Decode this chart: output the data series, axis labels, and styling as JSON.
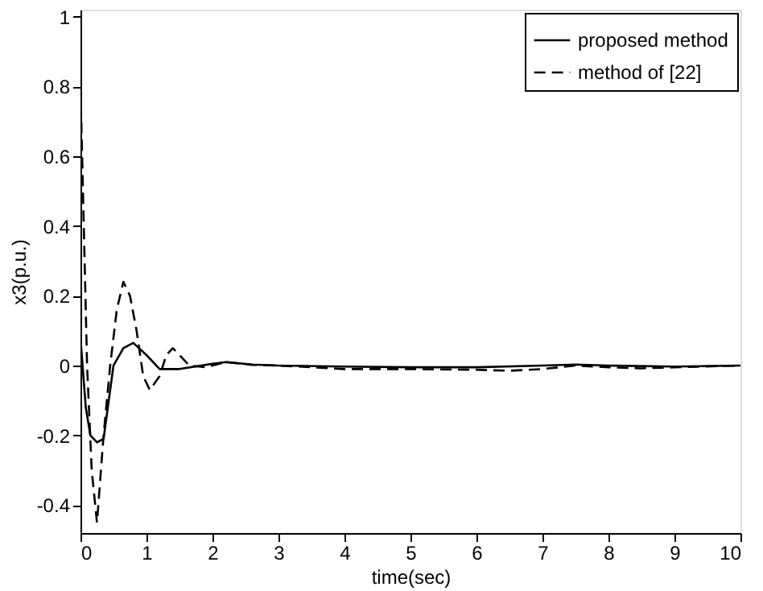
{
  "chart_data": {
    "type": "line",
    "xlabel": "time(sec)",
    "ylabel": "x3(p.u.)",
    "xlim": [
      0,
      10
    ],
    "xticks": [
      0,
      1,
      2,
      3,
      4,
      5,
      6,
      7,
      8,
      9,
      10
    ],
    "ylim": [
      -0.48,
      1.02
    ],
    "yticks": [
      -0.4,
      -0.2,
      0,
      0.2,
      0.4,
      0.6,
      0.8,
      1
    ],
    "grid": false,
    "legend": "top right",
    "marker": "none",
    "series": [
      {
        "name": "proposed method",
        "color": "#000000",
        "line_style": "solid",
        "x": [
          0,
          0.08,
          0.15,
          0.25,
          0.35,
          0.5,
          0.65,
          0.8,
          1.0,
          1.2,
          1.5,
          2.0,
          2.2,
          2.6,
          3,
          4,
          5,
          6,
          7,
          7.5,
          8,
          9,
          10
        ],
        "values": [
          0.08,
          -0.12,
          -0.2,
          -0.22,
          -0.21,
          0,
          0.05,
          0.065,
          0.03,
          -0.01,
          -0.01,
          0.005,
          0.01,
          0.003,
          0,
          -0.003,
          -0.005,
          -0.005,
          0,
          0.003,
          0,
          -0.003,
          0
        ]
      },
      {
        "name": "method of [22]",
        "color": "#000000",
        "line_style": "dashed",
        "x": [
          0,
          0.05,
          0.1,
          0.17,
          0.25,
          0.35,
          0.45,
          0.55,
          0.65,
          0.75,
          0.85,
          0.95,
          1.05,
          1.2,
          1.3,
          1.4,
          1.5,
          1.65,
          1.9,
          2.2,
          2.6,
          3,
          4,
          5,
          6,
          6.5,
          7,
          7.5,
          8,
          8.5,
          9,
          10
        ],
        "values": [
          0.8,
          0.4,
          0,
          -0.3,
          -0.45,
          -0.2,
          0,
          0.16,
          0.24,
          0.2,
          0.1,
          -0.03,
          -0.07,
          -0.03,
          0.03,
          0.05,
          0.03,
          0,
          -0.005,
          0.01,
          0.002,
          0,
          -0.01,
          -0.01,
          -0.012,
          -0.015,
          -0.01,
          0,
          -0.005,
          -0.008,
          -0.005,
          0
        ]
      }
    ]
  }
}
